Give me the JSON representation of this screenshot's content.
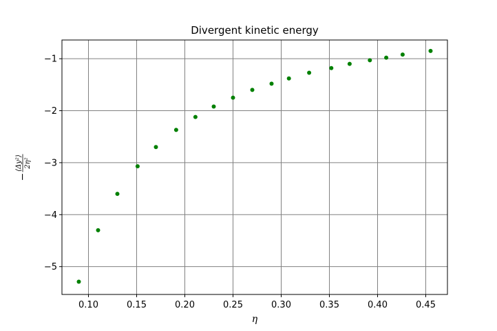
{
  "chart_data": {
    "type": "scatter",
    "title": "Divergent kinetic energy",
    "xlabel": "η",
    "ylabel": {
      "prefix": "−",
      "numerator": "⟨Δy²⟩",
      "denominator": "2η²"
    },
    "xlim": [
      0.0725,
      0.4725
    ],
    "ylim": [
      -5.535,
      -0.64
    ],
    "xticks": [
      0.1,
      0.15,
      0.2,
      0.25,
      0.3,
      0.35,
      0.4,
      0.45
    ],
    "xtick_labels": [
      "0.10",
      "0.15",
      "0.20",
      "0.25",
      "0.30",
      "0.35",
      "0.40",
      "0.45"
    ],
    "yticks": [
      -5,
      -4,
      -3,
      -2,
      -1
    ],
    "ytick_labels": [
      "−5",
      "−4",
      "−3",
      "−2",
      "−1"
    ],
    "grid": true,
    "grid_color": "#808080",
    "marker_color": "#008000",
    "series": [
      {
        "x": [
          0.09,
          0.11,
          0.13,
          0.151,
          0.17,
          0.191,
          0.211,
          0.23,
          0.25,
          0.27,
          0.29,
          0.308,
          0.329,
          0.352,
          0.371,
          0.392,
          0.409,
          0.426,
          0.455
        ],
        "values": [
          -5.29,
          -4.3,
          -3.6,
          -3.07,
          -2.7,
          -2.37,
          -2.12,
          -1.92,
          -1.75,
          -1.6,
          -1.48,
          -1.38,
          -1.27,
          -1.18,
          -1.1,
          -1.03,
          -0.98,
          -0.92,
          -0.85
        ]
      }
    ]
  }
}
